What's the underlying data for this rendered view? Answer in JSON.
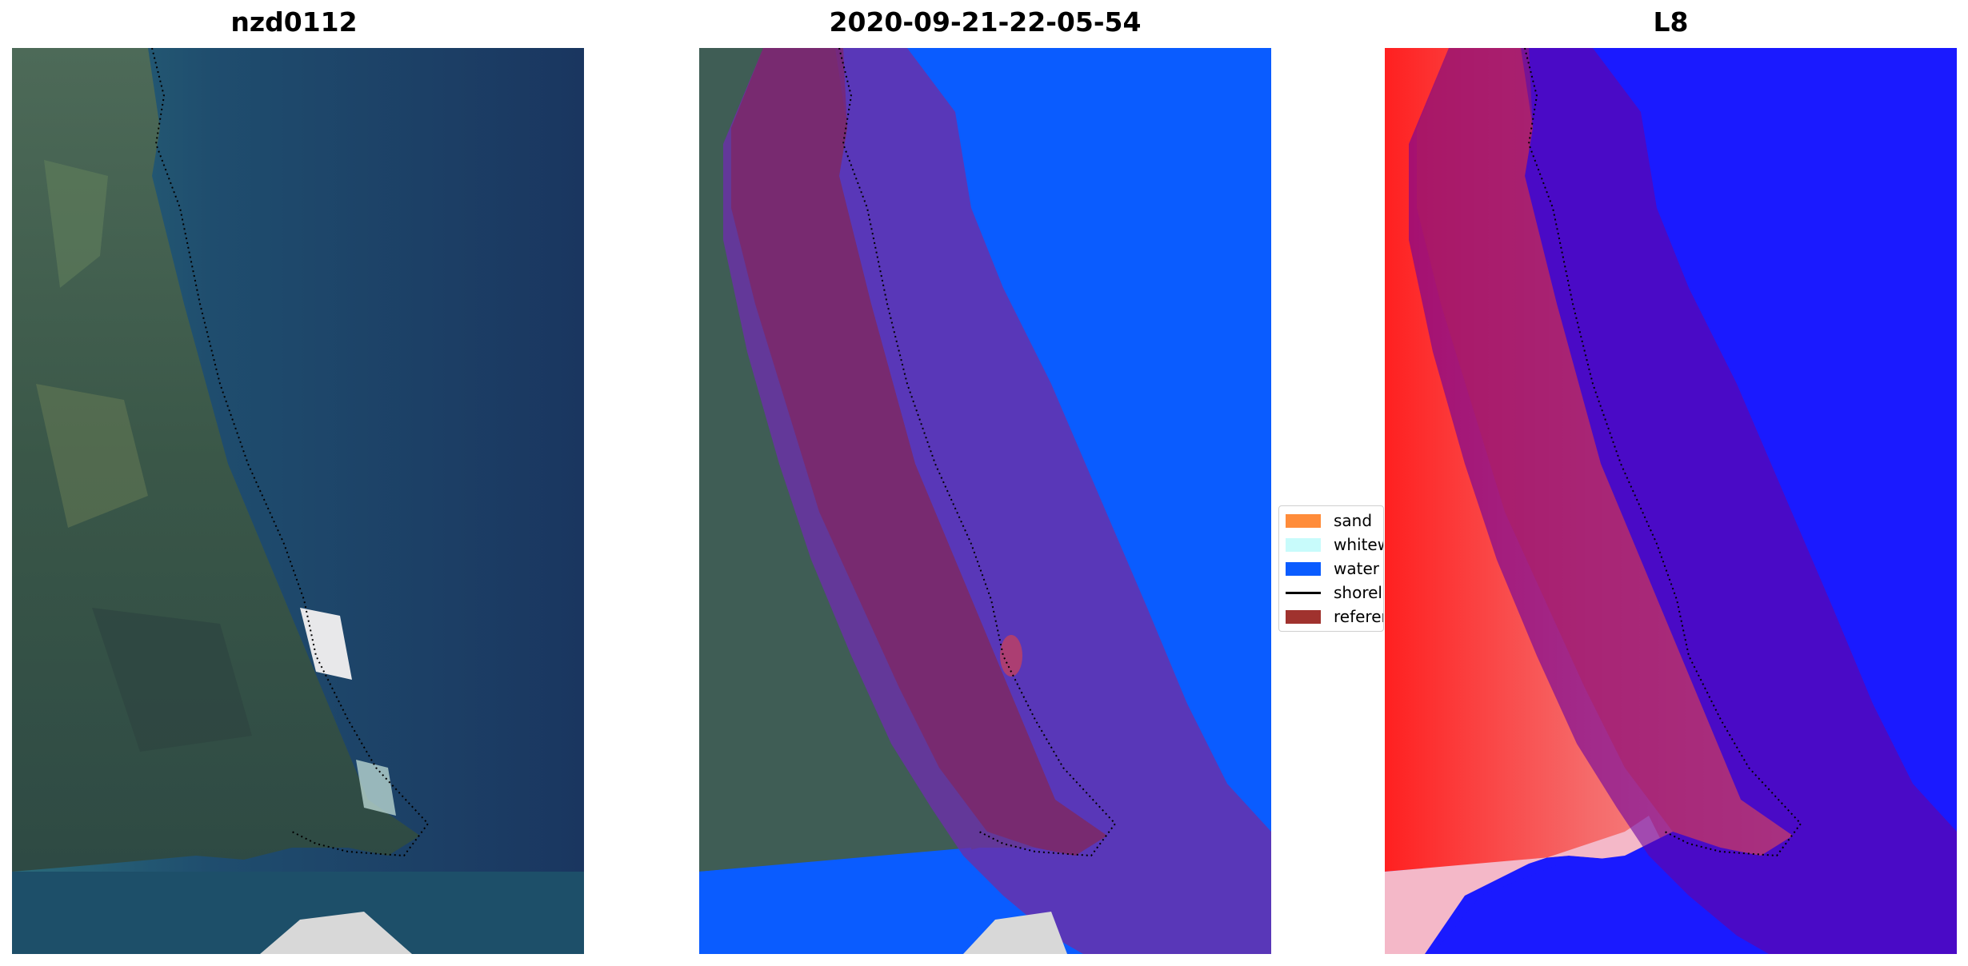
{
  "panels": [
    {
      "title": "nzd0112"
    },
    {
      "title": "2020-09-21-22-05-54"
    },
    {
      "title": "L8"
    }
  ],
  "legend": {
    "items": [
      {
        "label": "sand",
        "color": "#ff8c3a",
        "kind": "patch"
      },
      {
        "label": "whitewater",
        "color": "#c8fbfb",
        "kind": "patch"
      },
      {
        "label": "water",
        "color": "#0a5cff",
        "kind": "patch"
      },
      {
        "label": "shoreline",
        "color": "#000000",
        "kind": "line"
      },
      {
        "label": "reference",
        "color": "#a0322e",
        "kind": "patch"
      }
    ]
  },
  "colors": {
    "ocean": "#1a3a63",
    "land": "#3c5a4a",
    "water_class": "#0a5cff",
    "buffer_overlay": "#8b1f7a",
    "l8_land": "#f04a4a",
    "l8_water": "#1a1aff"
  }
}
